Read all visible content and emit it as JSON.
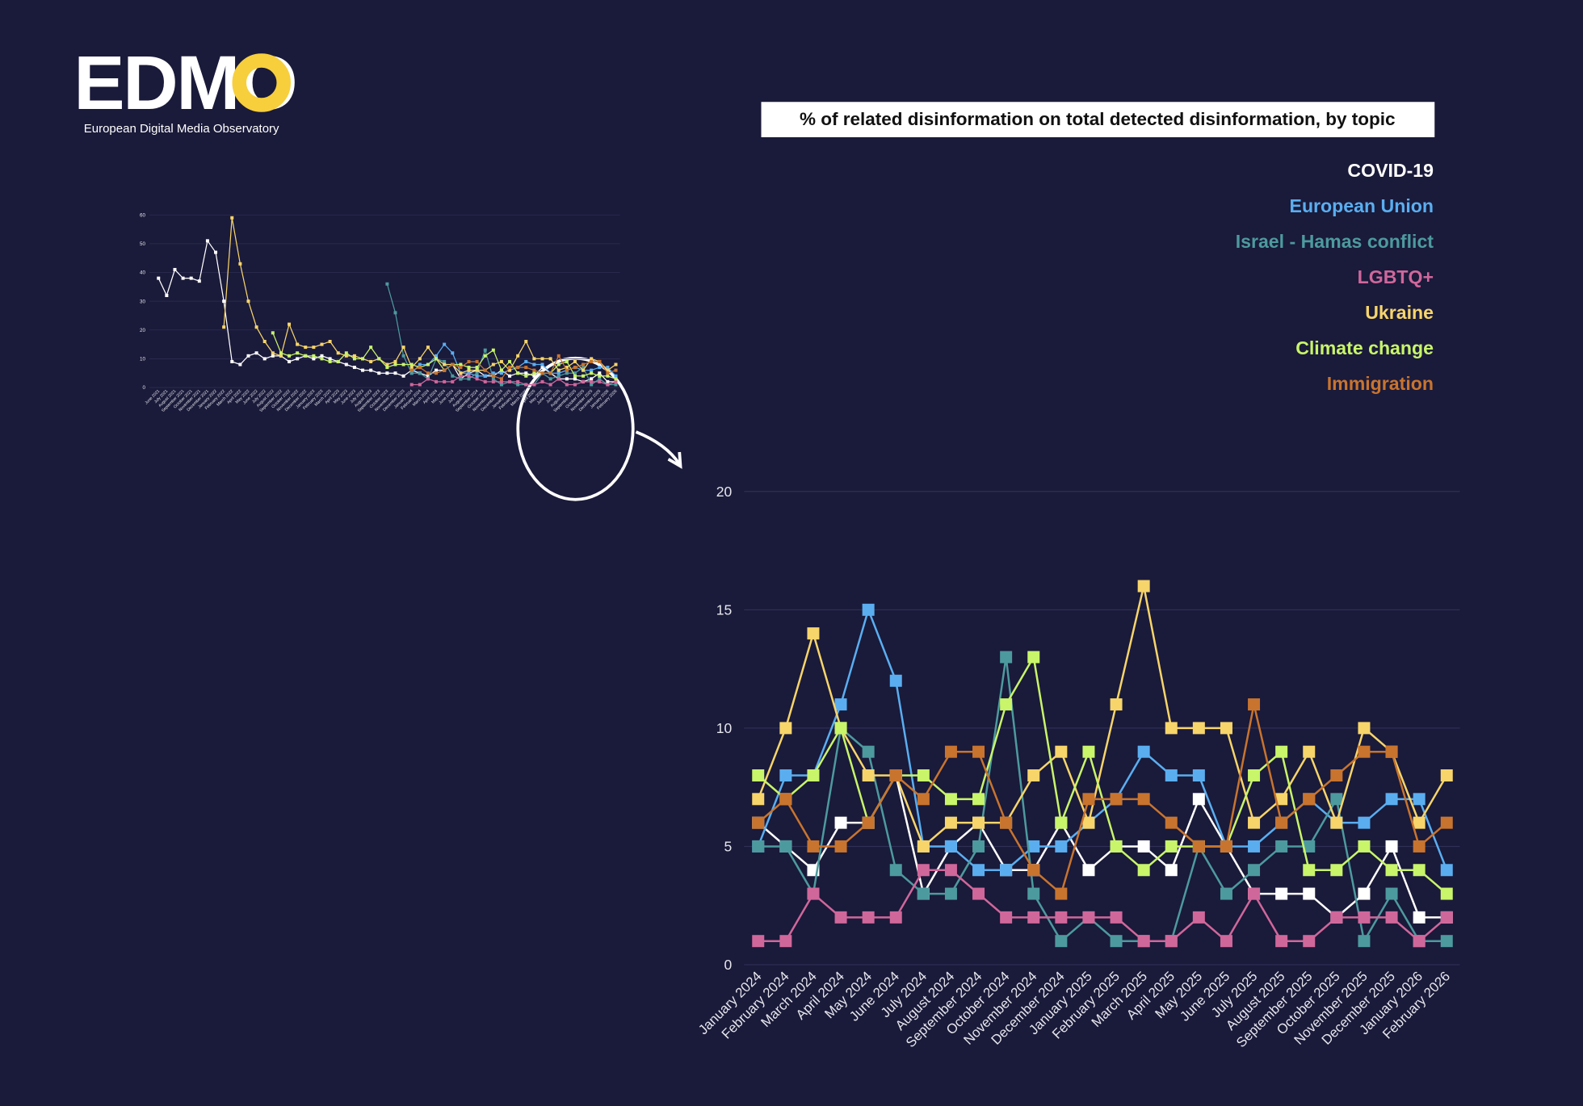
{
  "logo": {
    "name": "EDMO",
    "subtitle": "European Digital Media Observatory"
  },
  "chart_data": [
    {
      "type": "line",
      "title": "% of related disinformation on total detected disinformation, by topic",
      "categories": [
        "January 2024",
        "February 2024",
        "March 2024",
        "April 2024",
        "May 2024",
        "June 2024",
        "July 2024",
        "August 2024",
        "September 2024",
        "October 2024",
        "November 2024",
        "December 2024",
        "January 2025",
        "February 2025",
        "March 2025",
        "April 2025",
        "May 2025",
        "June 2025",
        "July 2025",
        "August 2025",
        "September 2025",
        "October 2025",
        "November 2025",
        "December 2025",
        "January 2026",
        "February 2026"
      ],
      "series": [
        {
          "name": "COVID-19",
          "color": "#ffffff",
          "values": [
            6,
            5,
            4,
            6,
            6,
            8,
            3,
            5,
            6,
            4,
            4,
            6,
            4,
            5,
            5,
            4,
            7,
            5,
            3,
            3,
            3,
            2,
            3,
            5,
            2,
            2
          ]
        },
        {
          "name": "European Union",
          "color": "#5aaef0",
          "values": [
            5,
            8,
            8,
            11,
            15,
            12,
            5,
            5,
            4,
            4,
            5,
            5,
            6,
            7,
            9,
            8,
            8,
            5,
            5,
            6,
            7,
            6,
            6,
            7,
            7,
            4
          ]
        },
        {
          "name": "Israel - Hamas conflict",
          "color": "#4d9a9e",
          "values": [
            5,
            5,
            3,
            10,
            9,
            4,
            3,
            3,
            5,
            13,
            3,
            1,
            2,
            1,
            1,
            1,
            5,
            3,
            4,
            5,
            5,
            7,
            1,
            3,
            1,
            1
          ]
        },
        {
          "name": "LGBTQ+",
          "color": "#d0679b",
          "values": [
            1,
            1,
            3,
            2,
            2,
            2,
            4,
            4,
            3,
            2,
            2,
            2,
            2,
            2,
            1,
            1,
            2,
            1,
            3,
            1,
            1,
            2,
            2,
            2,
            1,
            2
          ]
        },
        {
          "name": "Ukraine",
          "color": "#f7d56a",
          "values": [
            7,
            10,
            14,
            10,
            8,
            8,
            5,
            6,
            6,
            6,
            8,
            9,
            6,
            11,
            16,
            10,
            10,
            10,
            6,
            7,
            9,
            6,
            10,
            9,
            6,
            8
          ]
        },
        {
          "name": "Climate change",
          "color": "#c8f56a",
          "values": [
            8,
            7,
            8,
            10,
            6,
            8,
            8,
            7,
            7,
            11,
            13,
            6,
            9,
            5,
            4,
            5,
            5,
            5,
            8,
            9,
            4,
            4,
            5,
            4,
            4,
            3
          ]
        },
        {
          "name": "Immigration",
          "color": "#c8742e",
          "values": [
            6,
            7,
            5,
            5,
            6,
            8,
            7,
            9,
            9,
            6,
            4,
            3,
            7,
            7,
            7,
            6,
            5,
            5,
            11,
            6,
            7,
            8,
            9,
            9,
            5,
            6
          ]
        }
      ],
      "ylim": [
        0,
        20
      ],
      "yticks": [
        0,
        5,
        10,
        15,
        20
      ],
      "grid": true,
      "legend": "top-right"
    },
    {
      "type": "line",
      "categories": [
        "June 2021",
        "July 2021",
        "August 2021",
        "September 2021",
        "October 2021",
        "November 2021",
        "December 2021",
        "January 2022",
        "February 2022",
        "March 2022",
        "April 2022",
        "May 2022",
        "June 2022",
        "July 2022",
        "August 2022",
        "September 2022",
        "October 2022",
        "November 2022",
        "December 2022",
        "January 2023",
        "February 2023",
        "March 2023",
        "April 2023",
        "May 2023",
        "June 2023",
        "July 2023",
        "August 2023",
        "September 2023",
        "October 2023",
        "November 2023",
        "December 2023",
        "January 2024",
        "February 2024",
        "March 2024",
        "April 2024",
        "May 2024",
        "June 2024",
        "July 2024",
        "August 2024",
        "September 2024",
        "October 2024",
        "November 2024",
        "December 2024",
        "January 2025",
        "February 2025",
        "March 2025",
        "April 2025",
        "May 2025",
        "June 2025",
        "July 2025",
        "August 2025",
        "September 2025",
        "October 2025",
        "November 2025",
        "December 2025",
        "January 2026",
        "February 2026"
      ],
      "series": [
        {
          "color": "#ffffff",
          "values": [
            38,
            32,
            41,
            38,
            38,
            37,
            51,
            47,
            30,
            9,
            8,
            11,
            12,
            10,
            11,
            11,
            9,
            10,
            11,
            10,
            11,
            10,
            9,
            8,
            7,
            6,
            6,
            5,
            5,
            5,
            4,
            6,
            5,
            4,
            6,
            6,
            8,
            3,
            5,
            6,
            4,
            4,
            6,
            4,
            5,
            5,
            4,
            7,
            5,
            3,
            3,
            3,
            2,
            3,
            5,
            2,
            2
          ]
        },
        {
          "color": "#5aaef0",
          "values": [
            null,
            null,
            null,
            null,
            null,
            null,
            null,
            null,
            null,
            null,
            null,
            null,
            null,
            null,
            null,
            null,
            null,
            null,
            null,
            null,
            null,
            null,
            null,
            null,
            null,
            null,
            null,
            null,
            null,
            null,
            null,
            5,
            8,
            8,
            11,
            15,
            12,
            5,
            5,
            4,
            4,
            5,
            5,
            6,
            7,
            9,
            8,
            8,
            5,
            5,
            6,
            7,
            6,
            6,
            7,
            7,
            4
          ]
        },
        {
          "color": "#4d9a9e",
          "values": [
            null,
            null,
            null,
            null,
            null,
            null,
            null,
            null,
            null,
            null,
            null,
            null,
            null,
            null,
            null,
            null,
            null,
            null,
            null,
            null,
            null,
            null,
            null,
            null,
            null,
            null,
            null,
            null,
            36,
            26,
            11,
            5,
            5,
            3,
            10,
            9,
            4,
            3,
            3,
            5,
            13,
            3,
            1,
            2,
            1,
            1,
            1,
            5,
            3,
            4,
            5,
            5,
            7,
            1,
            3,
            1,
            1
          ]
        },
        {
          "color": "#d0679b",
          "values": [
            null,
            null,
            null,
            null,
            null,
            null,
            null,
            null,
            null,
            null,
            null,
            null,
            null,
            null,
            null,
            null,
            null,
            null,
            null,
            null,
            null,
            null,
            null,
            null,
            null,
            null,
            null,
            null,
            null,
            null,
            null,
            1,
            1,
            3,
            2,
            2,
            2,
            4,
            4,
            3,
            2,
            2,
            2,
            2,
            2,
            1,
            1,
            2,
            1,
            3,
            1,
            1,
            2,
            2,
            2,
            1,
            2
          ]
        },
        {
          "color": "#f7d56a",
          "values": [
            null,
            null,
            null,
            null,
            null,
            null,
            null,
            null,
            21,
            59,
            43,
            30,
            21,
            16,
            12,
            11,
            22,
            15,
            14,
            14,
            15,
            16,
            12,
            11,
            11,
            10,
            9,
            10,
            8,
            9,
            14,
            7,
            10,
            14,
            10,
            8,
            8,
            5,
            6,
            6,
            6,
            8,
            9,
            6,
            11,
            16,
            10,
            10,
            10,
            6,
            7,
            9,
            6,
            10,
            9,
            6,
            8
          ]
        },
        {
          "color": "#c8f56a",
          "values": [
            null,
            null,
            null,
            null,
            null,
            null,
            null,
            null,
            null,
            null,
            null,
            null,
            null,
            null,
            19,
            12,
            11,
            12,
            11,
            11,
            10,
            9,
            9,
            12,
            10,
            10,
            14,
            10,
            7,
            8,
            8,
            8,
            7,
            8,
            10,
            6,
            8,
            8,
            7,
            7,
            11,
            13,
            6,
            9,
            5,
            4,
            5,
            5,
            5,
            8,
            9,
            4,
            4,
            5,
            4,
            4,
            3
          ]
        },
        {
          "color": "#c8742e",
          "values": [
            null,
            null,
            null,
            null,
            null,
            null,
            null,
            null,
            null,
            null,
            null,
            null,
            null,
            null,
            null,
            null,
            null,
            null,
            null,
            null,
            null,
            null,
            null,
            null,
            null,
            null,
            null,
            null,
            null,
            null,
            null,
            6,
            7,
            5,
            5,
            6,
            8,
            7,
            9,
            9,
            6,
            4,
            3,
            7,
            7,
            7,
            6,
            5,
            5,
            11,
            6,
            7,
            8,
            9,
            9,
            5,
            6
          ]
        }
      ],
      "ylim": [
        0,
        60
      ],
      "yticks": [
        0,
        10,
        20,
        30,
        40,
        50,
        60
      ],
      "grid": true
    }
  ]
}
